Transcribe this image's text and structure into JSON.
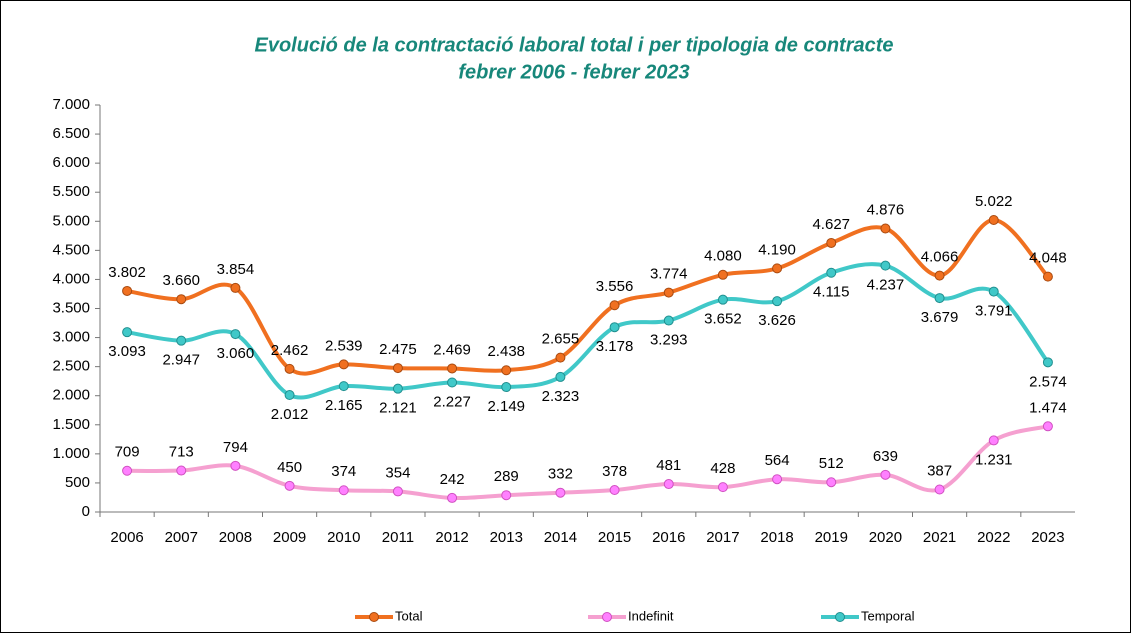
{
  "chart_data": {
    "type": "line",
    "title": "Evolució de la contractació laboral total i per tipologia de contracte",
    "subtitle": "febrer 2006 - febrer 2023",
    "categories": [
      "2006",
      "2007",
      "2008",
      "2009",
      "2010",
      "2011",
      "2012",
      "2013",
      "2014",
      "2015",
      "2016",
      "2017",
      "2018",
      "2019",
      "2020",
      "2021",
      "2022",
      "2023"
    ],
    "series": [
      {
        "name": "Total",
        "color": "#f07020",
        "values": [
          3802,
          3660,
          3854,
          2462,
          2539,
          2475,
          2469,
          2438,
          2655,
          3556,
          3774,
          4080,
          4190,
          4627,
          4876,
          4066,
          5022,
          4048
        ],
        "value_labels": [
          "3.802",
          "3.660",
          "3.854",
          "2.462",
          "2.539",
          "2.475",
          "2.469",
          "2.438",
          "2.655",
          "3.556",
          "3.774",
          "4.080",
          "4.190",
          "4.627",
          "4.876",
          "4.066",
          "5.022",
          "4.048"
        ]
      },
      {
        "name": "Indefinit",
        "color": "#f5a0d0",
        "values": [
          709,
          713,
          794,
          450,
          374,
          354,
          242,
          289,
          332,
          378,
          481,
          428,
          564,
          512,
          639,
          387,
          1231,
          1474
        ],
        "value_labels": [
          "709",
          "713",
          "794",
          "450",
          "374",
          "354",
          "242",
          "289",
          "332",
          "378",
          "481",
          "428",
          "564",
          "512",
          "639",
          "387",
          "1.231",
          "1.474"
        ]
      },
      {
        "name": "Temporal",
        "color": "#40c8c8",
        "values": [
          3093,
          2947,
          3060,
          2012,
          2165,
          2121,
          2227,
          2149,
          2323,
          3178,
          3293,
          3652,
          3626,
          4115,
          4237,
          3679,
          3791,
          2574
        ],
        "value_labels": [
          "3.093",
          "2.947",
          "3.060",
          "2.012",
          "2.165",
          "2.121",
          "2.227",
          "2.149",
          "2.323",
          "3.178",
          "3.293",
          "3.652",
          "3.626",
          "4.115",
          "4.237",
          "3.679",
          "3.791",
          "2.574"
        ]
      }
    ],
    "ylim": [
      0,
      7000
    ],
    "yticks": [
      0,
      500,
      {
        "value": 1000,
        "label": "1.000"
      },
      {
        "value": 1500,
        "label": "1.500"
      },
      {
        "value": 2000,
        "label": "2.000"
      },
      {
        "value": 2500,
        "label": "2.500"
      },
      {
        "value": 3000,
        "label": "3.000"
      },
      {
        "value": 3500,
        "label": "3.500"
      },
      {
        "value": 4000,
        "label": "4.000"
      },
      {
        "value": 4500,
        "label": "4.500"
      },
      {
        "value": 5000,
        "label": "5.000"
      },
      {
        "value": 5500,
        "label": "5.500"
      },
      {
        "value": 6000,
        "label": "6.000"
      },
      {
        "value": 6500,
        "label": "6.500"
      },
      {
        "value": 7000,
        "label": "7.000"
      }
    ],
    "grid": false,
    "legend": "bottom"
  }
}
